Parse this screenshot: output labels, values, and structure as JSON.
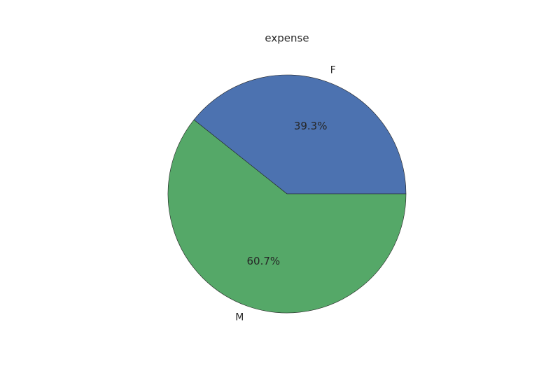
{
  "chart_data": {
    "type": "pie",
    "title": "expense",
    "categories": [
      "F",
      "M"
    ],
    "values": [
      39.3,
      60.7
    ],
    "value_labels": [
      "39.3%",
      "60.7%"
    ],
    "colors": [
      "#4c72b0",
      "#55a868"
    ]
  }
}
